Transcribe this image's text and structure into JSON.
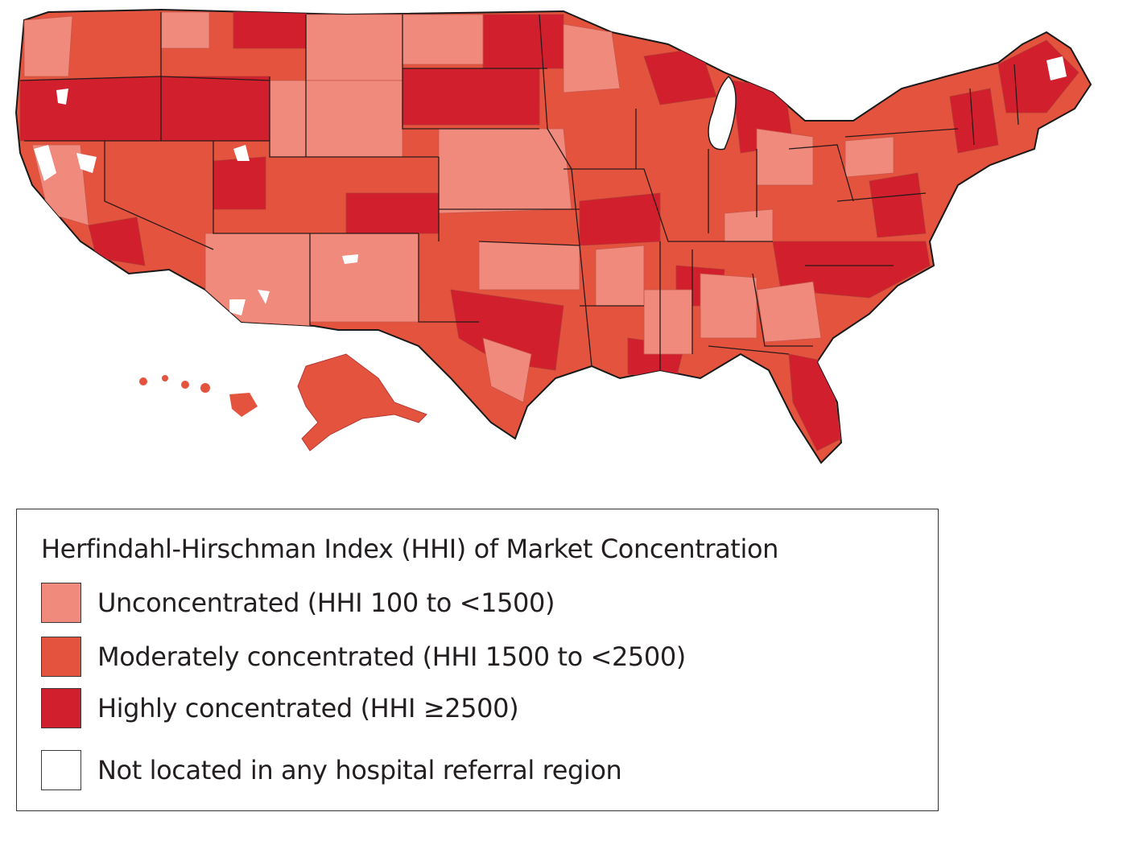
{
  "legend": {
    "title": "Herfindahl-Hirschman Index (HHI) of Market Concentration",
    "items": [
      {
        "key": "unconcentrated",
        "label": "Unconcentrated (HHI 100 to <1500)",
        "color": "#ef8a7c"
      },
      {
        "key": "moderate",
        "label": "Moderately concentrated (HHI 1500 to <2500)",
        "color": "#e4533e"
      },
      {
        "key": "high",
        "label": "Highly concentrated (HHI ≥2500)",
        "color": "#d11f2d"
      },
      {
        "key": "none",
        "label": "Not located in any hospital referral region",
        "color": "#ffffff"
      }
    ]
  },
  "colors": {
    "border": "#1a1a1a",
    "hrr_line": "#b23a35"
  }
}
